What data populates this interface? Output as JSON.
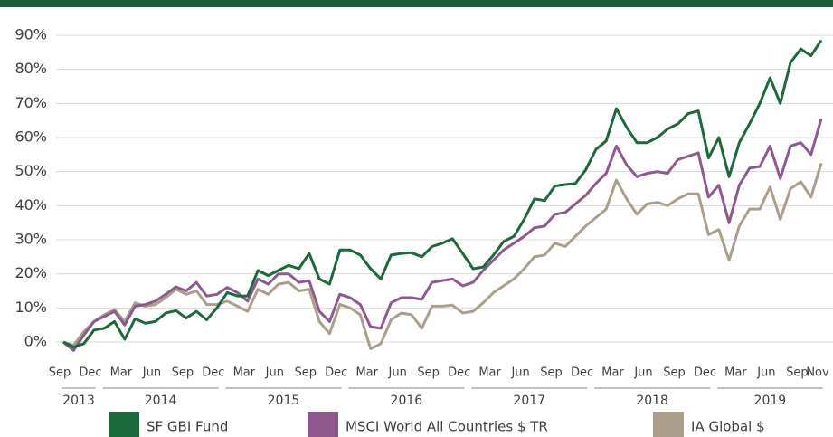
{
  "chart_data": {
    "type": "line",
    "categories": [
      "Sep",
      null,
      null,
      "Dec",
      null,
      null,
      "Mar",
      null,
      null,
      "Jun",
      null,
      null,
      "Sep",
      null,
      null,
      "Dec",
      null,
      null,
      "Mar",
      null,
      null,
      "Jun",
      null,
      null,
      "Sep",
      null,
      null,
      "Dec",
      null,
      null,
      "Mar",
      null,
      null,
      "Jun",
      null,
      null,
      "Sep",
      null,
      null,
      "Dec",
      null,
      null,
      "Mar",
      null,
      null,
      "Jun",
      null,
      null,
      "Sep",
      null,
      null,
      "Dec",
      null,
      null,
      "Mar",
      null,
      null,
      "Jun",
      null,
      null,
      "Sep",
      null,
      null,
      "Dec",
      null,
      null,
      "Mar",
      null,
      null,
      "Jun",
      null,
      null,
      "Sep",
      null,
      "Nov"
    ],
    "x_groups": [
      {
        "label": "2013",
        "count": 4
      },
      {
        "label": "2014",
        "count": 12
      },
      {
        "label": "2015",
        "count": 12
      },
      {
        "label": "2016",
        "count": 12
      },
      {
        "label": "2017",
        "count": 12
      },
      {
        "label": "2018",
        "count": 12
      },
      {
        "label": "2019",
        "count": 11
      }
    ],
    "series": [
      {
        "name": "SF GBI Fund",
        "color": "#1b6a3c",
        "values": [
          0,
          -1.5,
          -0.5,
          3.5,
          4,
          6,
          0.8,
          6.8,
          5.5,
          6,
          8.5,
          9.2,
          7,
          9,
          6.5,
          10,
          14.5,
          13.5,
          13.5,
          21,
          19.5,
          21,
          22.5,
          21.5,
          26,
          18.5,
          17,
          27,
          27,
          25.5,
          21.5,
          18.5,
          25.5,
          26,
          26.2,
          25,
          28,
          29,
          30.3,
          26,
          21.5,
          22,
          25.5,
          29.5,
          31,
          36,
          42,
          41.5,
          45.8,
          46.2,
          46.5,
          50.5,
          56.5,
          59,
          68.5,
          63,
          58.5,
          58.5,
          60,
          62.5,
          64,
          67,
          67.8,
          54,
          60,
          48.5,
          58.5,
          64,
          70,
          77.5,
          70,
          82,
          86,
          84,
          88.5
        ]
      },
      {
        "name": "MSCI World All Countries $ TR",
        "color": "#8e5a8e",
        "values": [
          0,
          -2.5,
          2,
          6,
          7.5,
          9,
          5,
          10.5,
          11,
          12,
          14,
          16.2,
          15,
          17.5,
          13.5,
          14,
          16,
          14.5,
          12,
          18.5,
          17,
          20,
          20,
          17.5,
          18,
          9,
          6,
          14,
          13,
          11,
          4.5,
          4,
          11.5,
          13,
          13,
          12.5,
          17.5,
          18,
          18.5,
          16.5,
          17.5,
          21,
          24,
          27,
          29,
          31,
          33.5,
          34,
          37.5,
          38,
          40.5,
          43,
          46.5,
          49.5,
          57.5,
          52,
          48.5,
          49.5,
          50,
          49.5,
          53.5,
          54.5,
          55.5,
          42.5,
          46,
          35,
          46,
          51,
          51.5,
          57.5,
          48,
          57.5,
          58.5,
          55,
          65.5
        ]
      },
      {
        "name": "IA Global $",
        "color": "#ab9f8b",
        "values": [
          0,
          -1,
          3,
          6,
          8,
          9.5,
          6,
          11.5,
          10.5,
          11,
          13,
          15.5,
          14,
          15,
          11,
          11,
          12,
          10.5,
          9,
          15.5,
          14,
          17,
          17.5,
          15,
          15.5,
          6,
          2.5,
          11,
          10,
          8,
          -2,
          -0.5,
          6.5,
          8.5,
          8,
          4,
          10.5,
          10.5,
          10.8,
          8.5,
          9,
          11.5,
          14.5,
          16.5,
          18.5,
          21.5,
          25,
          25.5,
          29,
          28,
          31,
          34,
          36.5,
          39,
          47.5,
          42,
          37.5,
          40.5,
          41,
          40,
          42,
          43.5,
          43.5,
          31.5,
          33,
          24,
          34,
          39,
          39,
          45.5,
          36,
          45,
          47,
          42.5,
          52.5
        ]
      }
    ],
    "ylim": [
      -5,
      92
    ],
    "yticks": [
      {
        "value": 0,
        "label": "0%"
      },
      {
        "value": 10,
        "label": "10%"
      },
      {
        "value": 20,
        "label": "20%"
      },
      {
        "value": 30,
        "label": "30%"
      },
      {
        "value": 40,
        "label": "40%"
      },
      {
        "value": 50,
        "label": "50%"
      },
      {
        "value": 60,
        "label": "60%"
      },
      {
        "value": 70,
        "label": "70%"
      },
      {
        "value": 80,
        "label": "80%"
      },
      {
        "value": 90,
        "label": "90%"
      }
    ],
    "grid": true
  }
}
